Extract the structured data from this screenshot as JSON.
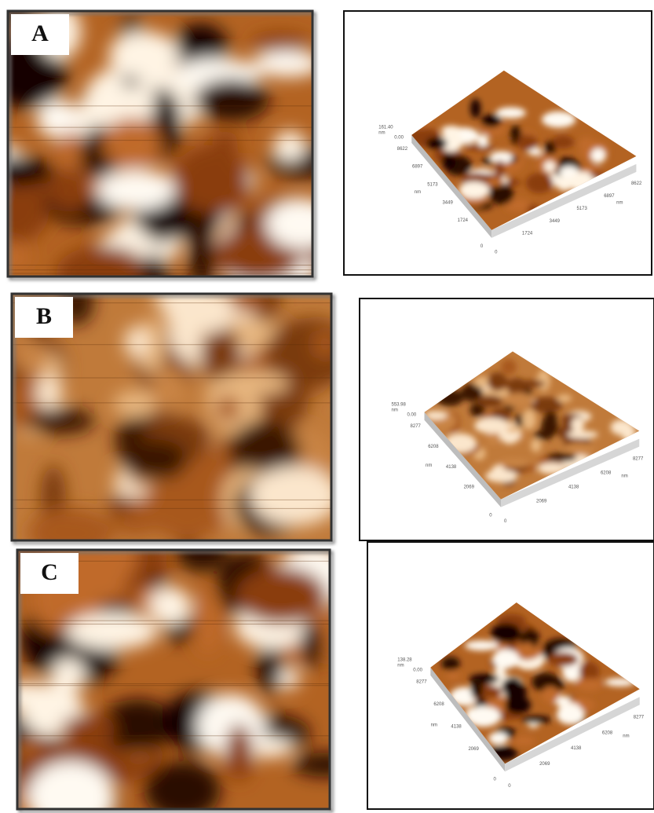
{
  "panels": [
    {
      "label": "A",
      "z_max": "161.40",
      "unit": "nm",
      "z_min": "0.00",
      "left_ticks": [
        "8622",
        "6897",
        "5173",
        "3449",
        "1724",
        "0"
      ],
      "bottom_ticks": [
        "0",
        "1724",
        "3449",
        "5173",
        "6897",
        "8622"
      ]
    },
    {
      "label": "B",
      "z_max": "553.98",
      "unit": "nm",
      "z_min": "0.00",
      "left_ticks": [
        "8277",
        "6208",
        "4138",
        "2069",
        "0"
      ],
      "bottom_ticks": [
        "0",
        "2069",
        "4138",
        "6208",
        "8277"
      ]
    },
    {
      "label": "C",
      "z_max": "138.28",
      "unit": "nm",
      "z_min": "0.00",
      "left_ticks": [
        "8277",
        "6208",
        "4138",
        "2069",
        "0"
      ],
      "bottom_ticks": [
        "0",
        "2069",
        "4138",
        "6208",
        "8277"
      ]
    }
  ]
}
